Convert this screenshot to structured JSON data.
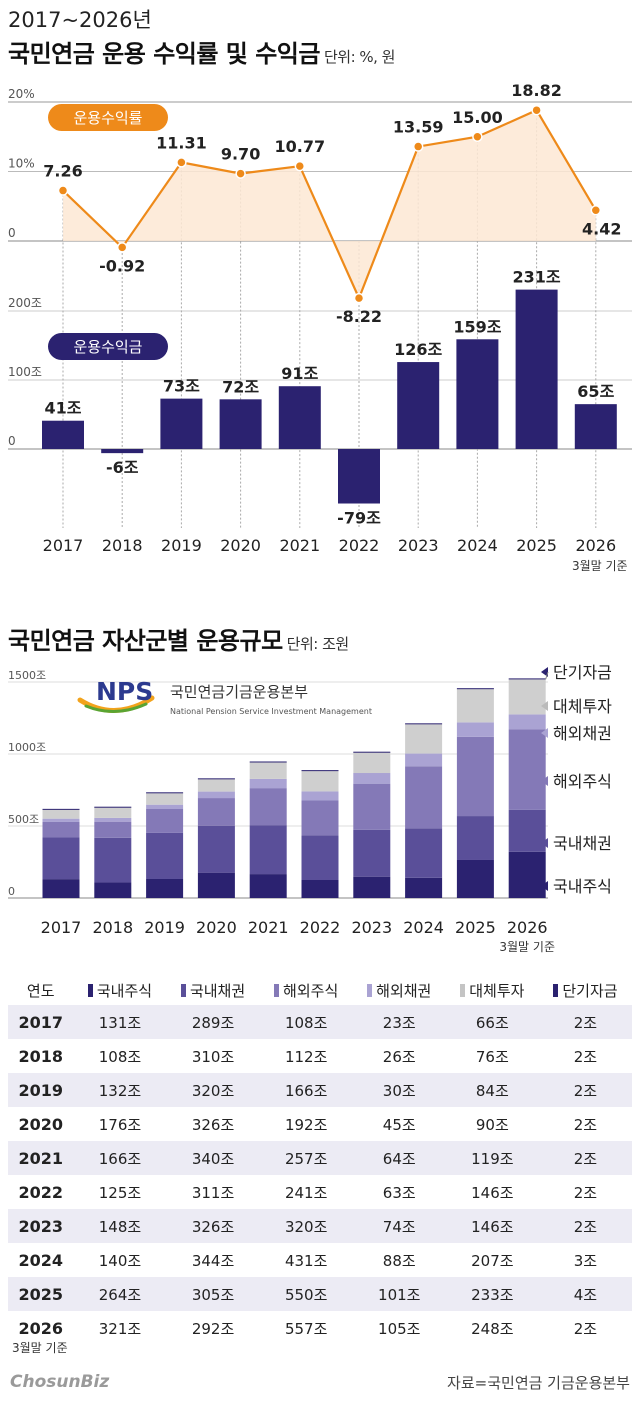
{
  "header": {
    "subtitle": "2017~2026년",
    "title": "국민연금 운용 수익률 및 수익금",
    "unit": "단위: %, 원"
  },
  "colors": {
    "orange": "#ee8a1a",
    "orange_fill": "#fde8d4",
    "navy": "#2b2270",
    "domestic_stock": "#2b2270",
    "domestic_bond": "#5a4f99",
    "foreign_stock": "#8479b7",
    "foreign_bond": "#aaa3d3",
    "alternative": "#cfcfcf",
    "short_term": "#2b2270",
    "table_shade": "#ecebf4"
  },
  "chart_data": [
    {
      "type": "line",
      "name_label": "운용수익률",
      "categories": [
        "2017",
        "2018",
        "2019",
        "2020",
        "2021",
        "2022",
        "2023",
        "2024",
        "2025",
        "2026"
      ],
      "values": [
        7.26,
        -0.92,
        11.31,
        9.7,
        10.77,
        -8.22,
        13.59,
        15.0,
        18.82,
        4.42
      ],
      "value_labels": [
        "7.26",
        "-0.92",
        "11.31",
        "9.70",
        "10.77",
        "-8.22",
        "13.59",
        "15.00",
        "18.82",
        "4.42"
      ],
      "ytick_labels": [
        "20%",
        "10%",
        "0"
      ],
      "ylim": [
        -10,
        20
      ]
    },
    {
      "type": "bar",
      "name_label": "운용수익금",
      "categories": [
        "2017",
        "2018",
        "2019",
        "2020",
        "2021",
        "2022",
        "2023",
        "2024",
        "2025",
        "2026"
      ],
      "values": [
        41,
        -6,
        73,
        72,
        91,
        -79,
        126,
        159,
        231,
        65
      ],
      "value_labels": [
        "41조",
        "-6조",
        "73조",
        "72조",
        "91조",
        "-79조",
        "126조",
        "159조",
        "231조",
        "65조"
      ],
      "ytick_labels": [
        "200조",
        "100조",
        "0"
      ],
      "ylim": [
        -100,
        250
      ],
      "x_note": "3월말 기준"
    },
    {
      "type": "bar",
      "stacked": true,
      "title": "국민연금 자산군별 운용규모",
      "unit": "단위: 조원",
      "categories": [
        "2017",
        "2018",
        "2019",
        "2020",
        "2021",
        "2022",
        "2023",
        "2024",
        "2025",
        "2026"
      ],
      "series": [
        {
          "name": "국내주식",
          "values": [
            131,
            108,
            132,
            176,
            166,
            125,
            148,
            140,
            264,
            321
          ]
        },
        {
          "name": "국내채권",
          "values": [
            289,
            310,
            320,
            326,
            340,
            311,
            326,
            344,
            305,
            292
          ]
        },
        {
          "name": "해외주식",
          "values": [
            108,
            112,
            166,
            192,
            257,
            241,
            320,
            431,
            550,
            557
          ]
        },
        {
          "name": "해외채권",
          "values": [
            23,
            26,
            30,
            45,
            64,
            63,
            74,
            88,
            101,
            105
          ]
        },
        {
          "name": "대체투자",
          "values": [
            66,
            76,
            84,
            90,
            119,
            146,
            146,
            207,
            233,
            248
          ]
        },
        {
          "name": "단기자금",
          "values": [
            2,
            2,
            2,
            2,
            2,
            2,
            2,
            3,
            4,
            2
          ]
        }
      ],
      "ytick_labels": [
        "1500조",
        "1000조",
        "500조",
        "0"
      ],
      "ylim": [
        0,
        1500
      ],
      "x_note": "3월말 기준",
      "logo": {
        "mark": "NPS",
        "name": "국민연금기금운용본부",
        "name_en": "National Pension Service Investment Management"
      }
    },
    {
      "type": "table",
      "columns": [
        "연도",
        "국내주식",
        "국내채권",
        "해외주식",
        "해외채권",
        "대체투자",
        "단기자금"
      ],
      "rows": [
        [
          "2017",
          "131조",
          "289조",
          "108조",
          "23조",
          "66조",
          "2조"
        ],
        [
          "2018",
          "108조",
          "310조",
          "112조",
          "26조",
          "76조",
          "2조"
        ],
        [
          "2019",
          "132조",
          "320조",
          "166조",
          "30조",
          "84조",
          "2조"
        ],
        [
          "2020",
          "176조",
          "326조",
          "192조",
          "45조",
          "90조",
          "2조"
        ],
        [
          "2021",
          "166조",
          "340조",
          "257조",
          "64조",
          "119조",
          "2조"
        ],
        [
          "2022",
          "125조",
          "311조",
          "241조",
          "63조",
          "146조",
          "2조"
        ],
        [
          "2023",
          "148조",
          "326조",
          "320조",
          "74조",
          "146조",
          "2조"
        ],
        [
          "2024",
          "140조",
          "344조",
          "431조",
          "88조",
          "207조",
          "3조"
        ],
        [
          "2025",
          "264조",
          "305조",
          "550조",
          "101조",
          "233조",
          "4조"
        ],
        [
          "2026",
          "321조",
          "292조",
          "557조",
          "105조",
          "248조",
          "2조"
        ]
      ],
      "row_note": "3월말 기준"
    }
  ],
  "footer": {
    "brand": "ChosunBiz",
    "source": "자료=국민연금 기금운용본부"
  }
}
